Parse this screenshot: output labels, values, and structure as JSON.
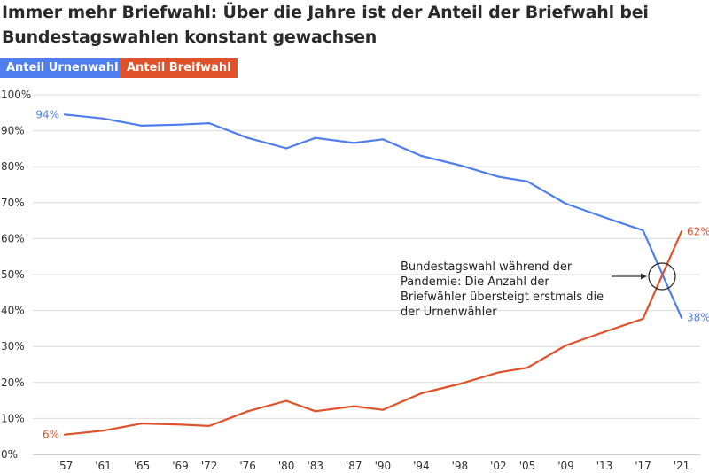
{
  "title_lines": [
    "Immer mehr Briefwahl: Über die Jahre ist der Anteil der Briefwahl bei",
    "Bundestagswahlen konstant gewachsen"
  ],
  "legend": [
    {
      "label": "Anteil Urnenwahl",
      "color": "#4f7ef0"
    },
    {
      "label": "Anteil Breifwahl",
      "color": "#e0522a"
    }
  ],
  "annotation": {
    "lines": [
      "Bundestagswahl während der",
      "Pandemie: Die Anzahl der",
      "Briefwähler übersteigt erstmals die",
      "der Urnenwähler"
    ]
  },
  "chart_data": {
    "type": "line",
    "title": "Immer mehr Briefwahl: Über die Jahre ist der Anteil der Briefwahl bei Bundestagswahlen konstant gewachsen",
    "xlabel": "",
    "ylabel": "",
    "x": [
      1957,
      1961,
      1965,
      1969,
      1972,
      1976,
      1980,
      1983,
      1987,
      1990,
      1994,
      1998,
      2002,
      2005,
      2009,
      2013,
      2017,
      2021
    ],
    "x_tick_labels": [
      "'57",
      "'61",
      "'65",
      "'69",
      "'72",
      "'76",
      "'80",
      "'83",
      "'87",
      "'90",
      "'94",
      "'98",
      "'02",
      "'05",
      "'09",
      "'13",
      "'17",
      "'21"
    ],
    "y_ticks": [
      0,
      10,
      20,
      30,
      40,
      50,
      60,
      70,
      80,
      90,
      100
    ],
    "y_tick_labels": [
      "0%",
      "10%",
      "20%",
      "30%",
      "40%",
      "50%",
      "60%",
      "70%",
      "80%",
      "90%",
      "100%"
    ],
    "ylim": [
      0,
      100
    ],
    "grid": true,
    "legend_position": "top-left",
    "series": [
      {
        "name": "Anteil Urnenwahl",
        "color": "#4f7ef0",
        "values": [
          94.5,
          93.4,
          91.4,
          91.7,
          92.1,
          88.0,
          85.1,
          88.0,
          86.6,
          87.6,
          83.0,
          80.4,
          77.2,
          75.9,
          69.7,
          65.9,
          62.3,
          38.0
        ],
        "start_label": "94%",
        "end_label": "38%"
      },
      {
        "name": "Anteil Breifwahl",
        "color": "#e0522a",
        "values": [
          5.5,
          6.6,
          8.6,
          8.3,
          7.9,
          12.0,
          14.9,
          12.0,
          13.4,
          12.4,
          17.0,
          19.6,
          22.8,
          24.1,
          30.3,
          34.1,
          37.7,
          62.0
        ],
        "start_label": "6%",
        "end_label": "62%"
      }
    ]
  }
}
